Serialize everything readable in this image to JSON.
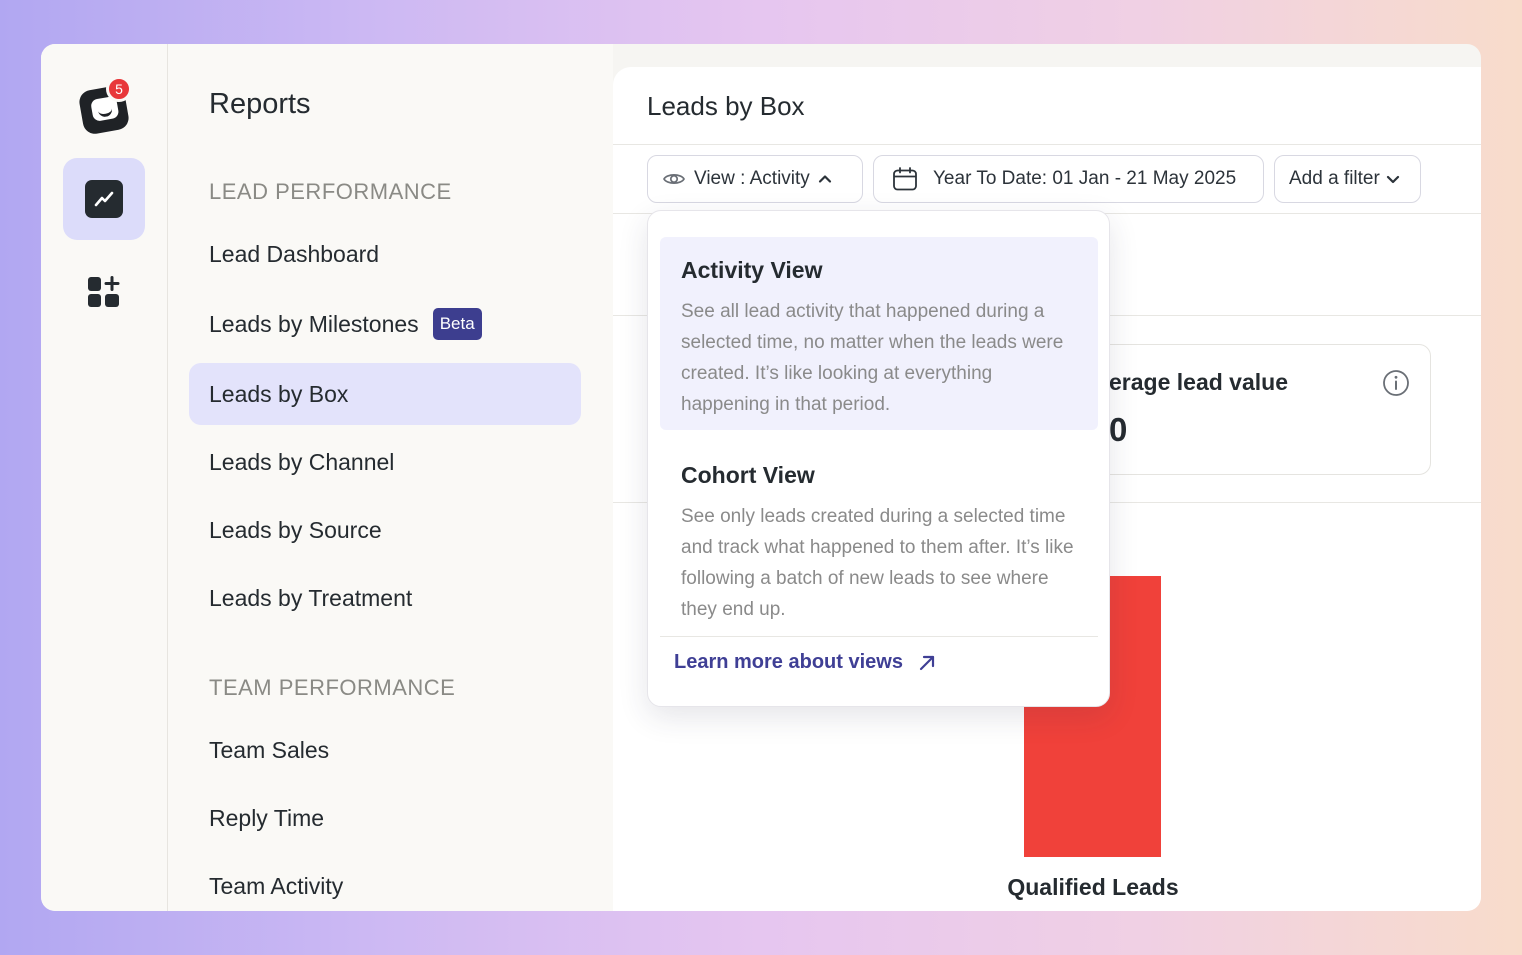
{
  "rail": {
    "notification_count": "5"
  },
  "sidebar": {
    "title": "Reports",
    "sections": [
      {
        "label": "LEAD PERFORMANCE",
        "items": [
          {
            "label": "Lead Dashboard"
          },
          {
            "label": "Leads by Milestones",
            "badge": "Beta"
          },
          {
            "label": "Leads by Box"
          },
          {
            "label": "Leads by Channel"
          },
          {
            "label": "Leads by Source"
          },
          {
            "label": "Leads by Treatment"
          }
        ]
      },
      {
        "label": "TEAM PERFORMANCE",
        "items": [
          {
            "label": "Team Sales"
          },
          {
            "label": "Reply Time"
          },
          {
            "label": "Team Activity"
          }
        ]
      }
    ],
    "active_item": "Leads by Box"
  },
  "main": {
    "title": "Leads by Box",
    "view_button": "View : Activity",
    "date_range": "Year To Date: 01 Jan - 21 May 2025",
    "filter_button": "Add a filter",
    "metric": {
      "label": "erage lead value",
      "value": "0"
    },
    "chart": {
      "bar_label": "Qualified Leads"
    }
  },
  "dropdown": {
    "options": [
      {
        "title": "Activity View",
        "description": "See all lead activity that happened during a selected time, no matter when the leads were created. It’s like looking at everything happening in that period.",
        "selected": true
      },
      {
        "title": "Cohort View",
        "description": "See only leads created during a selected time and track what happened to them after. It’s like following a batch of new leads to see where they end up.",
        "selected": false
      }
    ],
    "learn_more": "Learn more about views"
  },
  "colors": {
    "accent": "#3d3e8f",
    "active_bg": "#e3e3fb",
    "bar": "#f0413a",
    "notification": "#e8373a"
  },
  "icons": [
    "app-logo-icon",
    "chart-line-icon",
    "add-widget-icon",
    "eye-icon",
    "chevron-up-icon",
    "calendar-icon",
    "chevron-down-icon",
    "info-icon",
    "arrow-up-right-icon"
  ]
}
